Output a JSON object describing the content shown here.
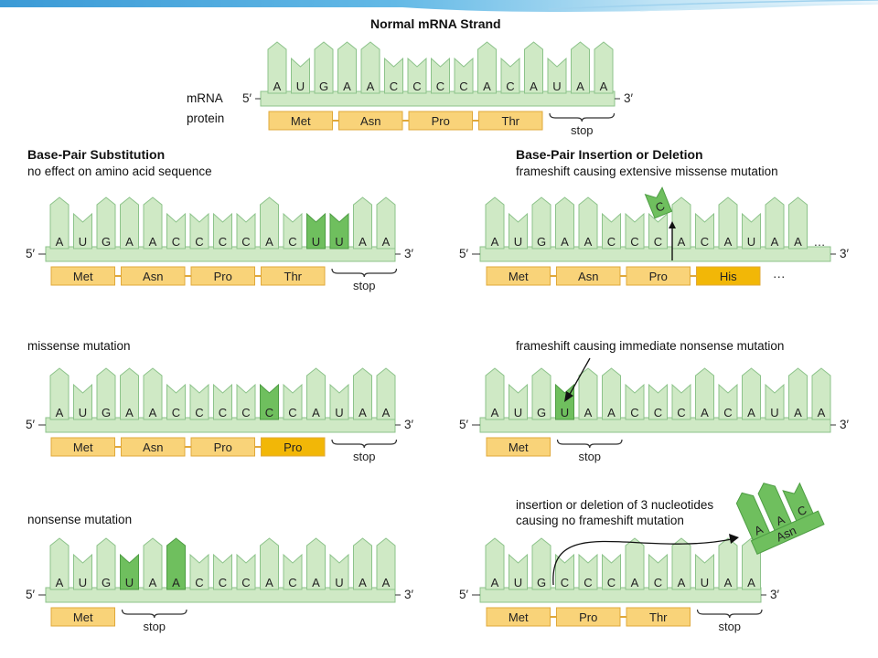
{
  "titles": {
    "normal": "Normal mRNA Strand",
    "substitution": "Base-Pair Substitution",
    "insertion": "Base-Pair Insertion or Deletion"
  },
  "captions": {
    "no_effect": "no effect on amino acid sequence",
    "missense": "missense mutation",
    "nonsense": "nonsense mutation",
    "frameshift_missense": "frameshift causing extensive missense mutation",
    "frameshift_nonsense": "frameshift causing immediate nonsense mutation",
    "no_frameshift_1": "insertion or deletion of 3 nucleotides",
    "no_frameshift_2": "causing no frameshift mutation"
  },
  "labels": {
    "mrna": "mRNA",
    "protein": "protein",
    "five_prime": "5′",
    "three_prime": "3′",
    "stop": "stop",
    "ellipsis": "…",
    "ellipsis_protein": "···"
  },
  "colors": {
    "nucleotide_fill": "#cfe9c5",
    "nucleotide_stroke": "#8cc38a",
    "mutated_fill": "#6fbf5e",
    "mutated_stroke": "#4e9d44",
    "amino_acid_fill": "#f9d379",
    "amino_acid_stroke": "#e0a83a",
    "changed_amino_acid_fill": "#f2b707",
    "banner": "#4fa9dd"
  },
  "strands": [
    {
      "id": "normal",
      "bases": [
        "A",
        "U",
        "G",
        "A",
        "A",
        "C",
        "C",
        "C",
        "C",
        "A",
        "C",
        "A",
        "U",
        "A",
        "A"
      ],
      "mutated": [],
      "codons": [
        {
          "aa": "Met"
        },
        {
          "aa": "Asn"
        },
        {
          "aa": "Pro"
        },
        {
          "aa": "Thr"
        }
      ],
      "stop": true
    },
    {
      "id": "silent",
      "bases": [
        "A",
        "U",
        "G",
        "A",
        "A",
        "C",
        "C",
        "C",
        "C",
        "A",
        "C",
        "U",
        "U",
        "A",
        "A"
      ],
      "mutated": [
        11,
        12
      ],
      "codons": [
        {
          "aa": "Met"
        },
        {
          "aa": "Asn"
        },
        {
          "aa": "Pro"
        },
        {
          "aa": "Thr"
        }
      ],
      "stop": true
    },
    {
      "id": "missense",
      "bases": [
        "A",
        "U",
        "G",
        "A",
        "A",
        "C",
        "C",
        "C",
        "C",
        "C",
        "C",
        "A",
        "U",
        "A",
        "A"
      ],
      "mutated": [
        9
      ],
      "codons": [
        {
          "aa": "Met"
        },
        {
          "aa": "Asn"
        },
        {
          "aa": "Pro"
        },
        {
          "aa": "Pro",
          "changed": true
        }
      ],
      "stop": true
    },
    {
      "id": "nonsense",
      "bases": [
        "A",
        "U",
        "G",
        "U",
        "A",
        "A",
        "C",
        "C",
        "C",
        "A",
        "C",
        "A",
        "U",
        "A",
        "A"
      ],
      "mutated": [
        3,
        5
      ],
      "codons": [
        {
          "aa": "Met"
        }
      ],
      "stop_after": 1
    },
    {
      "id": "frameshift-missense",
      "bases": [
        "A",
        "U",
        "G",
        "A",
        "A",
        "C",
        "C",
        "C",
        "A",
        "C",
        "A",
        "U",
        "A",
        "A"
      ],
      "mutated": [],
      "inserted_base": "C",
      "codons": [
        {
          "aa": "Met"
        },
        {
          "aa": "Asn"
        },
        {
          "aa": "Pro"
        },
        {
          "aa": "His",
          "changed": true
        }
      ],
      "ellipsis": true
    },
    {
      "id": "frameshift-nonsense",
      "bases": [
        "A",
        "U",
        "G",
        "U",
        "A",
        "A",
        "C",
        "C",
        "C",
        "A",
        "C",
        "A",
        "U",
        "A",
        "A"
      ],
      "mutated": [
        3
      ],
      "codons": [
        {
          "aa": "Met"
        }
      ],
      "stop_after": 1
    },
    {
      "id": "no-frameshift",
      "bases": [
        "A",
        "U",
        "G",
        "C",
        "C",
        "C",
        "A",
        "C",
        "A",
        "U",
        "A",
        "A"
      ],
      "mutated": [],
      "removed_bases": [
        "A",
        "A",
        "C"
      ],
      "removed_aa": "Asn",
      "codons": [
        {
          "aa": "Met"
        },
        {
          "aa": "Pro"
        },
        {
          "aa": "Thr"
        }
      ],
      "stop_after": 3
    }
  ]
}
